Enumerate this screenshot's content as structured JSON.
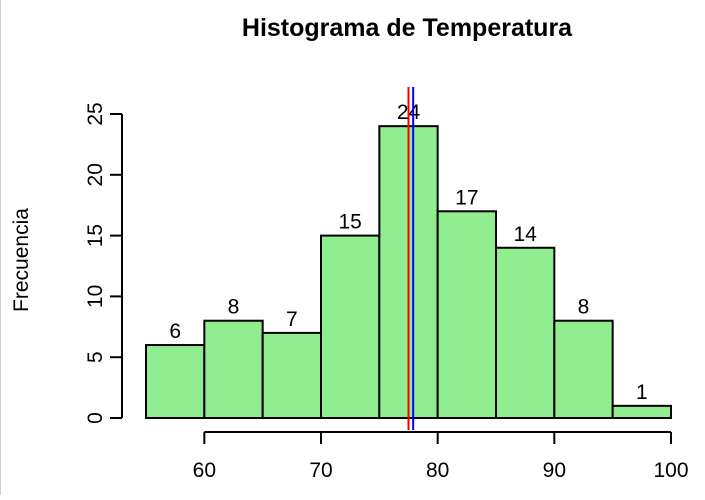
{
  "chart_data": {
    "type": "histogram",
    "title": "Histograma de Temperatura",
    "xlabel": "",
    "ylabel": "Frecuencia",
    "bins": [
      {
        "start": 55,
        "end": 60,
        "count": 6
      },
      {
        "start": 60,
        "end": 65,
        "count": 8
      },
      {
        "start": 65,
        "end": 70,
        "count": 7
      },
      {
        "start": 70,
        "end": 75,
        "count": 15
      },
      {
        "start": 75,
        "end": 80,
        "count": 24
      },
      {
        "start": 80,
        "end": 85,
        "count": 17
      },
      {
        "start": 85,
        "end": 90,
        "count": 14
      },
      {
        "start": 90,
        "end": 95,
        "count": 8
      },
      {
        "start": 95,
        "end": 100,
        "count": 1
      }
    ],
    "xlim": [
      55,
      100
    ],
    "ylim": [
      0,
      25
    ],
    "x_ticks": [
      60,
      70,
      80,
      90,
      100
    ],
    "y_ticks": [
      0,
      5,
      10,
      15,
      20,
      25
    ],
    "bar_color": "#90ee90",
    "vertical_lines": [
      {
        "x": 77.5,
        "color": "#ff0000"
      },
      {
        "x": 77.9,
        "color": "#0000ff"
      }
    ],
    "grid": false
  }
}
